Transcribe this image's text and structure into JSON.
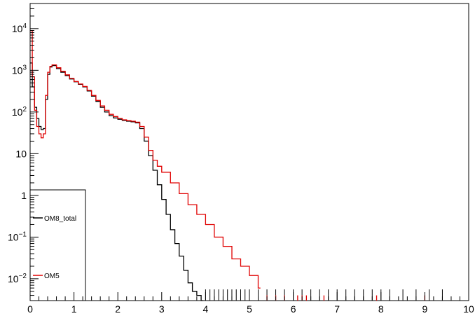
{
  "chart_data": {
    "type": "line",
    "style": "step-histogram",
    "title": "",
    "xlabel": "",
    "ylabel": "",
    "x_scale": "linear",
    "y_scale": "log",
    "xlim": [
      0,
      10
    ],
    "ylim": [
      0.003,
      40000
    ],
    "grid": false,
    "legend_position": "bottom-left",
    "x_ticks": [
      {
        "value": 0,
        "label": "0"
      },
      {
        "value": 1,
        "label": "1"
      },
      {
        "value": 2,
        "label": "2"
      },
      {
        "value": 3,
        "label": "3"
      },
      {
        "value": 4,
        "label": "4"
      },
      {
        "value": 5,
        "label": "5"
      },
      {
        "value": 6,
        "label": "6"
      },
      {
        "value": 7,
        "label": "7"
      },
      {
        "value": 8,
        "label": "8"
      },
      {
        "value": 9,
        "label": "9"
      },
      {
        "value": 10,
        "label": "10"
      }
    ],
    "y_ticks": [
      {
        "value": 0.01,
        "base": "10",
        "exp": "−2"
      },
      {
        "value": 0.1,
        "base": "10",
        "exp": "−1"
      },
      {
        "value": 1,
        "base": "1",
        "exp": ""
      },
      {
        "value": 10,
        "base": "10",
        "exp": ""
      },
      {
        "value": 100,
        "base": "10",
        "exp": "2"
      },
      {
        "value": 1000,
        "base": "10",
        "exp": "3"
      },
      {
        "value": 10000,
        "base": "10",
        "exp": "4"
      }
    ],
    "series": [
      {
        "name": "OM8_total",
        "color": "#000000",
        "x": [
          0,
          0.05,
          0.1,
          0.15,
          0.2,
          0.25,
          0.3,
          0.35,
          0.4,
          0.45,
          0.5,
          0.6,
          0.7,
          0.8,
          0.9,
          1.0,
          1.1,
          1.2,
          1.3,
          1.4,
          1.5,
          1.6,
          1.7,
          1.8,
          1.9,
          2.0,
          2.1,
          2.2,
          2.3,
          2.4,
          2.5,
          2.6,
          2.7,
          2.8,
          2.9,
          3.0,
          3.1,
          3.2,
          3.3,
          3.4,
          3.5,
          3.6,
          3.7,
          3.8,
          3.9
        ],
        "values": [
          1500,
          400,
          130,
          70,
          45,
          38,
          40,
          200,
          800,
          1200,
          1300,
          1100,
          900,
          750,
          620,
          530,
          460,
          400,
          320,
          240,
          180,
          130,
          100,
          82,
          72,
          67,
          63,
          60,
          58,
          55,
          40,
          20,
          9,
          4,
          1.8,
          0.8,
          0.35,
          0.15,
          0.07,
          0.035,
          0.016,
          0.008,
          0.005,
          0.004,
          0.003
        ]
      },
      {
        "name": "OM5",
        "color": "#e00000",
        "x": [
          0,
          0.05,
          0.1,
          0.15,
          0.2,
          0.25,
          0.3,
          0.35,
          0.4,
          0.45,
          0.5,
          0.6,
          0.7,
          0.8,
          0.9,
          1.0,
          1.1,
          1.2,
          1.3,
          1.4,
          1.5,
          1.6,
          1.7,
          1.8,
          1.9,
          2.0,
          2.1,
          2.2,
          2.3,
          2.4,
          2.5,
          2.6,
          2.7,
          2.8,
          2.9,
          3.0,
          3.2,
          3.4,
          3.6,
          3.8,
          4.0,
          4.2,
          4.4,
          4.6,
          4.8,
          5.0,
          5.2
        ],
        "values": [
          9000,
          700,
          110,
          45,
          30,
          24,
          30,
          250,
          900,
          1250,
          1350,
          1150,
          950,
          780,
          640,
          540,
          470,
          410,
          330,
          250,
          190,
          140,
          110,
          88,
          78,
          70,
          65,
          62,
          60,
          57,
          45,
          25,
          12,
          7,
          5,
          3.6,
          2.0,
          1.1,
          0.6,
          0.35,
          0.2,
          0.1,
          0.06,
          0.03,
          0.02,
          0.012,
          0.006
        ]
      }
    ],
    "sparse_tail": {
      "OM8_total_x": [
        4.0,
        4.1,
        4.2,
        4.3,
        4.4,
        4.5,
        4.6,
        4.7,
        4.8,
        4.9,
        5.0,
        5.2,
        5.4,
        5.6,
        5.8,
        6.0,
        6.2,
        6.4,
        6.6,
        6.8,
        7.0,
        7.2,
        7.4,
        7.6,
        7.8,
        8.0,
        8.2,
        8.5,
        8.8,
        9.1,
        9.4
      ],
      "OM5_x": [
        5.4,
        5.6,
        5.8,
        6.1,
        6.2,
        6.3,
        6.7,
        7.9,
        9.0
      ],
      "OM5_value": 0.004
    }
  },
  "legend": {
    "entries": [
      {
        "label": "OM8_total",
        "color": "#000000"
      },
      {
        "label": "OM5",
        "color": "#e00000"
      }
    ]
  }
}
